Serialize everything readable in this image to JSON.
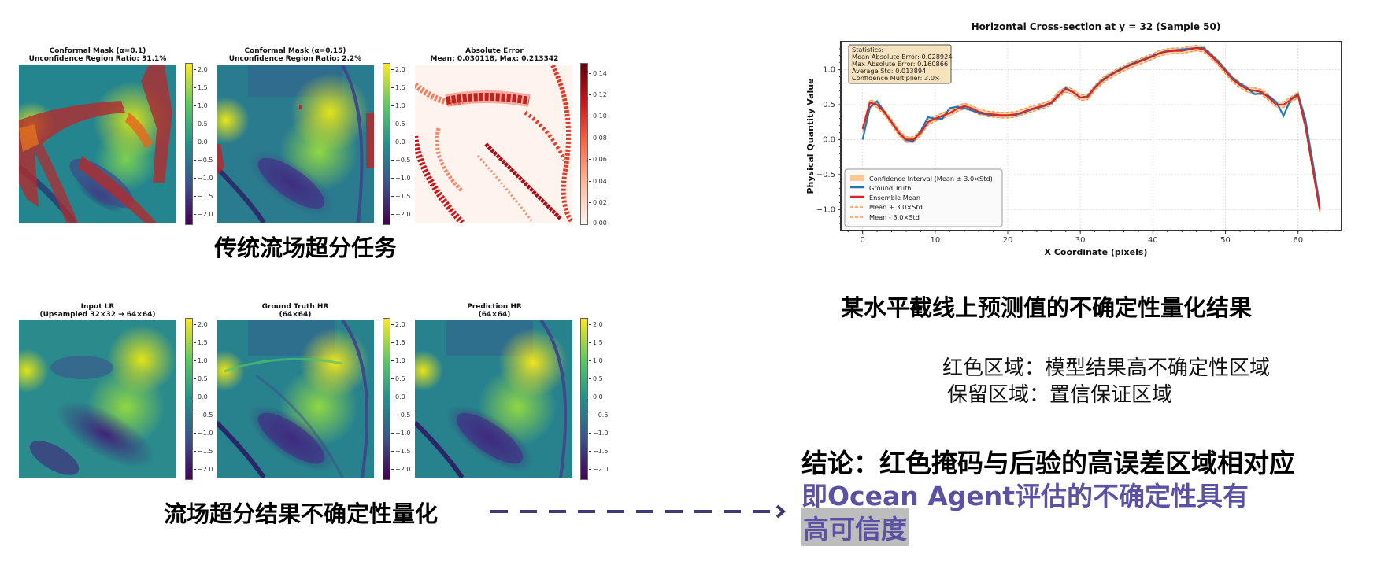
{
  "slide": {
    "top_row": {
      "caption": "传统流场超分任务",
      "panels": [
        {
          "title_line1": "Conformal Mask (α=0.1)",
          "title_line2": "Unconfidence Region Ratio: 31.1%",
          "colormap": "viridis+mask"
        },
        {
          "title_line1": "Conformal Mask (α=0.15)",
          "title_line2": "Unconfidence Region Ratio: 2.2%",
          "colormap": "viridis+mask"
        },
        {
          "title_line1": "Absolute Error",
          "title_line2": "Mean: 0.030118, Max: 0.213342",
          "colormap": "reds"
        }
      ],
      "viridis_ticks": [
        "2.0",
        "1.5",
        "1.0",
        "0.5",
        "0.0",
        "−0.5",
        "−1.0",
        "−1.5",
        "−2.0"
      ],
      "error_ticks": [
        "0.14",
        "0.12",
        "0.10",
        "0.08",
        "0.06",
        "0.04",
        "0.02",
        "0.00"
      ]
    },
    "bottom_row": {
      "caption": "流场超分结果不确定性量化",
      "panels": [
        {
          "title_line1": "Input LR",
          "title_line2": "(Upsampled 32×32 → 64×64)"
        },
        {
          "title_line1": "Ground Truth HR",
          "title_line2": "(64×64)"
        },
        {
          "title_line1": "Prediction HR",
          "title_line2": "(64×64)"
        }
      ],
      "viridis_ticks": [
        "2.0",
        "1.5",
        "1.0",
        "0.5",
        "0.0",
        "−0.5",
        "−1.0",
        "−1.5",
        "−2.0"
      ]
    },
    "right": {
      "chart_caption": "某水平截线上预测值的不确定性量化结果",
      "note_line1": "红色区域：模型结果高不确定性区域",
      "note_line2": "保留区域：置信保证区域",
      "conclusion_line1": "结论：红色掩码与后验的高误差区域相对应",
      "conclusion_line2": "即Ocean Agent评估的不确定性具有",
      "conclusion_line3": "高可信度",
      "conclusion_highlight_color": "#5b52a3"
    },
    "arrow": {
      "style": "dashed",
      "color": "#3d3a78",
      "icon": "arrow-right-icon"
    }
  },
  "chart_data": {
    "type": "line",
    "title": "Horizontal Cross-section at y = 32 (Sample 50)",
    "xlabel": "X Coordinate (pixels)",
    "ylabel": "Physical Quantity Value",
    "xlim": [
      -3,
      66
    ],
    "ylim": [
      -1.3,
      1.4
    ],
    "xticks": [
      "0",
      "10",
      "20",
      "30",
      "40",
      "50",
      "60"
    ],
    "yticks": [
      "1.0",
      "0.5",
      "0.0",
      "−0.5",
      "−1.0"
    ],
    "grid": true,
    "stats_box": {
      "title": "Statistics:",
      "lines": [
        "Mean Absolute Error: 0.028924",
        "Max Absolute Error: 0.160866",
        "Average Std: 0.013894",
        "Confidence Multiplier: 3.0×"
      ]
    },
    "legend": [
      {
        "label": "Confidence Interval (Mean ± 3.0×Std)",
        "color": "#fdc892",
        "kind": "patch"
      },
      {
        "label": "Ground Truth",
        "color": "#1f77b4",
        "kind": "line"
      },
      {
        "label": "Ensemble Mean",
        "color": "#d62728",
        "kind": "line"
      },
      {
        "label": "Mean + 3.0×Std",
        "color": "#ff9040",
        "kind": "dashed"
      },
      {
        "label": "Mean - 3.0×Std",
        "color": "#ff9040",
        "kind": "dashed"
      }
    ],
    "legend_position": "lower left",
    "x": [
      0,
      1,
      2,
      3,
      4,
      5,
      6,
      7,
      8,
      9,
      10,
      11,
      12,
      13,
      14,
      15,
      16,
      17,
      18,
      19,
      20,
      21,
      22,
      23,
      24,
      25,
      26,
      27,
      28,
      29,
      30,
      31,
      32,
      33,
      34,
      35,
      36,
      37,
      38,
      39,
      40,
      41,
      42,
      43,
      44,
      45,
      46,
      47,
      48,
      49,
      50,
      51,
      52,
      53,
      54,
      55,
      56,
      57,
      58,
      59,
      60,
      61,
      62,
      63
    ],
    "series": [
      {
        "name": "Ground Truth",
        "values": [
          0.0,
          0.46,
          0.55,
          0.4,
          0.25,
          0.1,
          -0.01,
          -0.02,
          0.12,
          0.32,
          0.3,
          0.3,
          0.45,
          0.47,
          0.45,
          0.42,
          0.38,
          0.36,
          0.35,
          0.34,
          0.34,
          0.35,
          0.38,
          0.42,
          0.45,
          0.48,
          0.52,
          0.63,
          0.74,
          0.68,
          0.6,
          0.62,
          0.75,
          0.85,
          0.92,
          0.98,
          1.03,
          1.08,
          1.12,
          1.16,
          1.2,
          1.24,
          1.27,
          1.28,
          1.29,
          1.3,
          1.31,
          1.31,
          1.22,
          1.12,
          1.0,
          0.88,
          0.8,
          0.74,
          0.65,
          0.66,
          0.62,
          0.54,
          0.34,
          0.58,
          0.65,
          0.3,
          -0.3,
          -0.93
        ]
      },
      {
        "name": "Ensemble Mean",
        "values": [
          0.15,
          0.53,
          0.5,
          0.39,
          0.25,
          0.1,
          0.0,
          0.0,
          0.1,
          0.25,
          0.3,
          0.34,
          0.38,
          0.44,
          0.48,
          0.45,
          0.4,
          0.37,
          0.36,
          0.35,
          0.35,
          0.36,
          0.39,
          0.43,
          0.46,
          0.49,
          0.53,
          0.64,
          0.72,
          0.68,
          0.6,
          0.61,
          0.74,
          0.84,
          0.91,
          0.97,
          1.02,
          1.07,
          1.11,
          1.15,
          1.19,
          1.24,
          1.26,
          1.27,
          1.27,
          1.29,
          1.31,
          1.29,
          1.2,
          1.1,
          0.98,
          0.86,
          0.78,
          0.72,
          0.7,
          0.68,
          0.6,
          0.5,
          0.5,
          0.57,
          0.64,
          0.2,
          -0.4,
          -1.0
        ]
      }
    ]
  }
}
